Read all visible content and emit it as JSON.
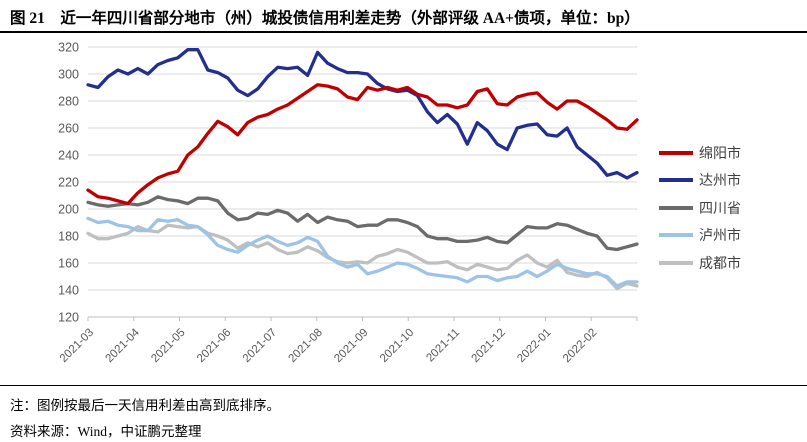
{
  "header": {
    "title": "图 21　近一年四川省部分地市（州）城投债信用利差走势（外部评级 AA+债项，单位：bp）"
  },
  "chart_data": {
    "type": "line",
    "title": "近一年四川省部分地市（州）城投债信用利差走势（外部评级AA+债项）",
    "unit": "bp",
    "x_labels": [
      "2021-03",
      "2021-04",
      "2021-05",
      "2021-06",
      "2021-07",
      "2021-08",
      "2021-09",
      "2021-10",
      "2021-11",
      "2021-12",
      "2022-01",
      "2022-02"
    ],
    "ylim": [
      120,
      320
    ],
    "y_tick_step": 20,
    "grid": "horizontal",
    "legend_position": "right",
    "colors": {
      "grid": "#D9D9D9",
      "axis": "#BFBFBF",
      "tick_label": "#595959",
      "legend_text": "#404040"
    },
    "series": [
      {
        "id": "mianyang",
        "name": "绵阳市",
        "color": "#C00000",
        "values": [
          214,
          209,
          208,
          206,
          204,
          212,
          218,
          223,
          226,
          228,
          240,
          246,
          256,
          265,
          261,
          255,
          264,
          268,
          270,
          274,
          277,
          282,
          287,
          292,
          291,
          289,
          283,
          281,
          290,
          288,
          290,
          288,
          290,
          285,
          283,
          277,
          277,
          275,
          277,
          287,
          289,
          278,
          277,
          283,
          285,
          286,
          279,
          274,
          280,
          280,
          276,
          271,
          266,
          260,
          259,
          266
        ]
      },
      {
        "id": "dazhou",
        "name": "达州市",
        "color": "#232F8F",
        "values": [
          292,
          290,
          298,
          303,
          300,
          304,
          300,
          307,
          310,
          312,
          318,
          318,
          303,
          301,
          297,
          288,
          284,
          289,
          298,
          305,
          304,
          305,
          299,
          316,
          308,
          304,
          301,
          301,
          300,
          293,
          289,
          287,
          288,
          284,
          272,
          264,
          270,
          263,
          248,
          264,
          258,
          248,
          244,
          260,
          262,
          263,
          255,
          254,
          260,
          246,
          240,
          234,
          225,
          227,
          223,
          227
        ]
      },
      {
        "id": "sichuan",
        "name": "四川省",
        "color": "#6B6B6B",
        "values": [
          205,
          203,
          202,
          203,
          204,
          203,
          205,
          209,
          207,
          206,
          204,
          208,
          208,
          206,
          197,
          192,
          193,
          197,
          196,
          199,
          197,
          191,
          196,
          190,
          194,
          192,
          191,
          187,
          188,
          188,
          192,
          192,
          190,
          187,
          180,
          178,
          178,
          176,
          176,
          177,
          179,
          176,
          175,
          181,
          187,
          186,
          186,
          189,
          188,
          185,
          182,
          180,
          171,
          170,
          172,
          174
        ]
      },
      {
        "id": "luzhou",
        "name": "泸州市",
        "color": "#9DC3E6",
        "values": [
          193,
          190,
          191,
          188,
          187,
          184,
          184,
          192,
          191,
          192,
          188,
          187,
          181,
          173,
          170,
          168,
          173,
          177,
          180,
          176,
          173,
          175,
          179,
          176,
          165,
          160,
          157,
          159,
          152,
          154,
          157,
          160,
          159,
          156,
          152,
          151,
          150,
          149,
          146,
          150,
          150,
          147,
          149,
          150,
          154,
          150,
          154,
          159,
          156,
          154,
          152,
          152,
          150,
          143,
          146,
          146
        ]
      },
      {
        "id": "chengdu",
        "name": "成都市",
        "color": "#BFBFBF",
        "values": [
          182,
          178,
          178,
          180,
          182,
          187,
          184,
          183,
          188,
          187,
          186,
          187,
          182,
          180,
          177,
          171,
          175,
          172,
          175,
          170,
          167,
          168,
          172,
          169,
          164,
          161,
          160,
          161,
          160,
          165,
          167,
          170,
          168,
          164,
          160,
          160,
          161,
          157,
          155,
          159,
          157,
          155,
          156,
          162,
          166,
          160,
          157,
          162,
          153,
          151,
          150,
          153,
          149,
          141,
          145,
          143
        ]
      }
    ]
  },
  "notes": {
    "note": "注：图例按最后一天信用利差由高到底排序。",
    "source": "资料来源：Wind，中证鹏元整理"
  }
}
